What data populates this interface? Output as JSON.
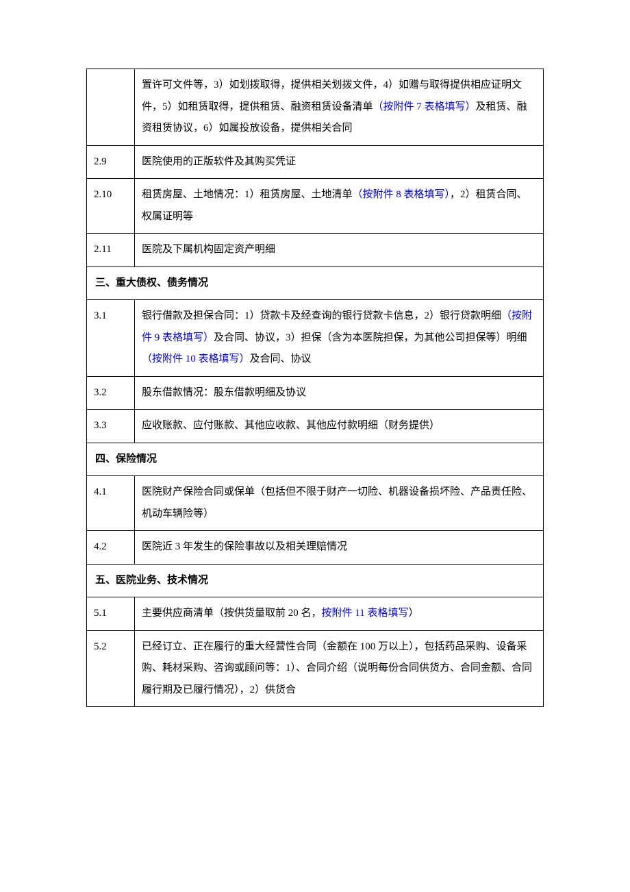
{
  "rows": {
    "r0": {
      "num": "",
      "parts": [
        {
          "t": "置许可文件等，3）如划拨取得，提供相关划拨文件，4）如赠与取得提供相应证明文件，5）如租赁取得，提供租赁、融资租赁设备清单"
        },
        {
          "t": "（按附件 7 表格填写）",
          "link": true
        },
        {
          "t": "及租赁、融资租赁协议，6）如属投放设备，提供相关合同"
        }
      ]
    },
    "r1": {
      "num": "2.9",
      "parts": [
        {
          "t": "医院使用的正版软件及其购买凭证"
        }
      ]
    },
    "r2": {
      "num": "2.10",
      "parts": [
        {
          "t": "租赁房屋、土地情况：1）租赁房屋、土地清单"
        },
        {
          "t": "（按附件 8 表格填写）",
          "link": true
        },
        {
          "t": "，2）租赁合同、权属证明等"
        }
      ]
    },
    "r3": {
      "num": "2.11",
      "parts": [
        {
          "t": "医院及下属机构固定资产明细"
        }
      ]
    },
    "sec3": "三、重大债权、债务情况",
    "r4": {
      "num": "3.1",
      "parts": [
        {
          "t": "银行借款及担保合同：1）贷款卡及经查询的银行贷款卡信息，2）银行贷款明细"
        },
        {
          "t": "（按附件 9 表格填写）",
          "link": true
        },
        {
          "t": "及合同、协议，3）担保（含为本医院担保，为其他公司担保等）明细"
        },
        {
          "t": "（按附件 10 表格填写）",
          "link": true
        },
        {
          "t": "及合同、协议"
        }
      ]
    },
    "r5": {
      "num": "3.2",
      "parts": [
        {
          "t": "股东借款情况：股东借款明细及协议"
        }
      ]
    },
    "r6": {
      "num": "3.3",
      "parts": [
        {
          "t": "应收账款、应付账款、其他应收款、其他应付款明细（财务提供）"
        }
      ]
    },
    "sec4": "四、保险情况",
    "r7": {
      "num": "4.1",
      "parts": [
        {
          "t": "医院财产保险合同或保单（包括但不限于财产一切险、机器设备损坏险、产品责任险、机动车辆险等）"
        }
      ]
    },
    "r8": {
      "num": "4.2",
      "parts": [
        {
          "t": "医院近 3 年发生的保险事故以及相关理赔情况"
        }
      ]
    },
    "sec5": "五、医院业务、技术情况",
    "r9": {
      "num": "5.1",
      "parts": [
        {
          "t": "主要供应商清单（按供货量取前 20 名，"
        },
        {
          "t": "按附件 11 表格填写",
          "link": true
        },
        {
          "t": "）"
        }
      ]
    },
    "r10": {
      "num": "5.2",
      "parts": [
        {
          "t": "已经订立、正在履行的重大经营性合同（金额在 100 万以上），包括药品采购、设备采购、耗材采购、咨询或顾问等：1）、合同介绍（说明每份合同供货方、合同金额、合同履行期及已履行情况），2）供货合"
        }
      ]
    }
  },
  "colors": {
    "text": "#000000",
    "link": "#0000cc",
    "border": "#000000",
    "background": "#ffffff"
  }
}
